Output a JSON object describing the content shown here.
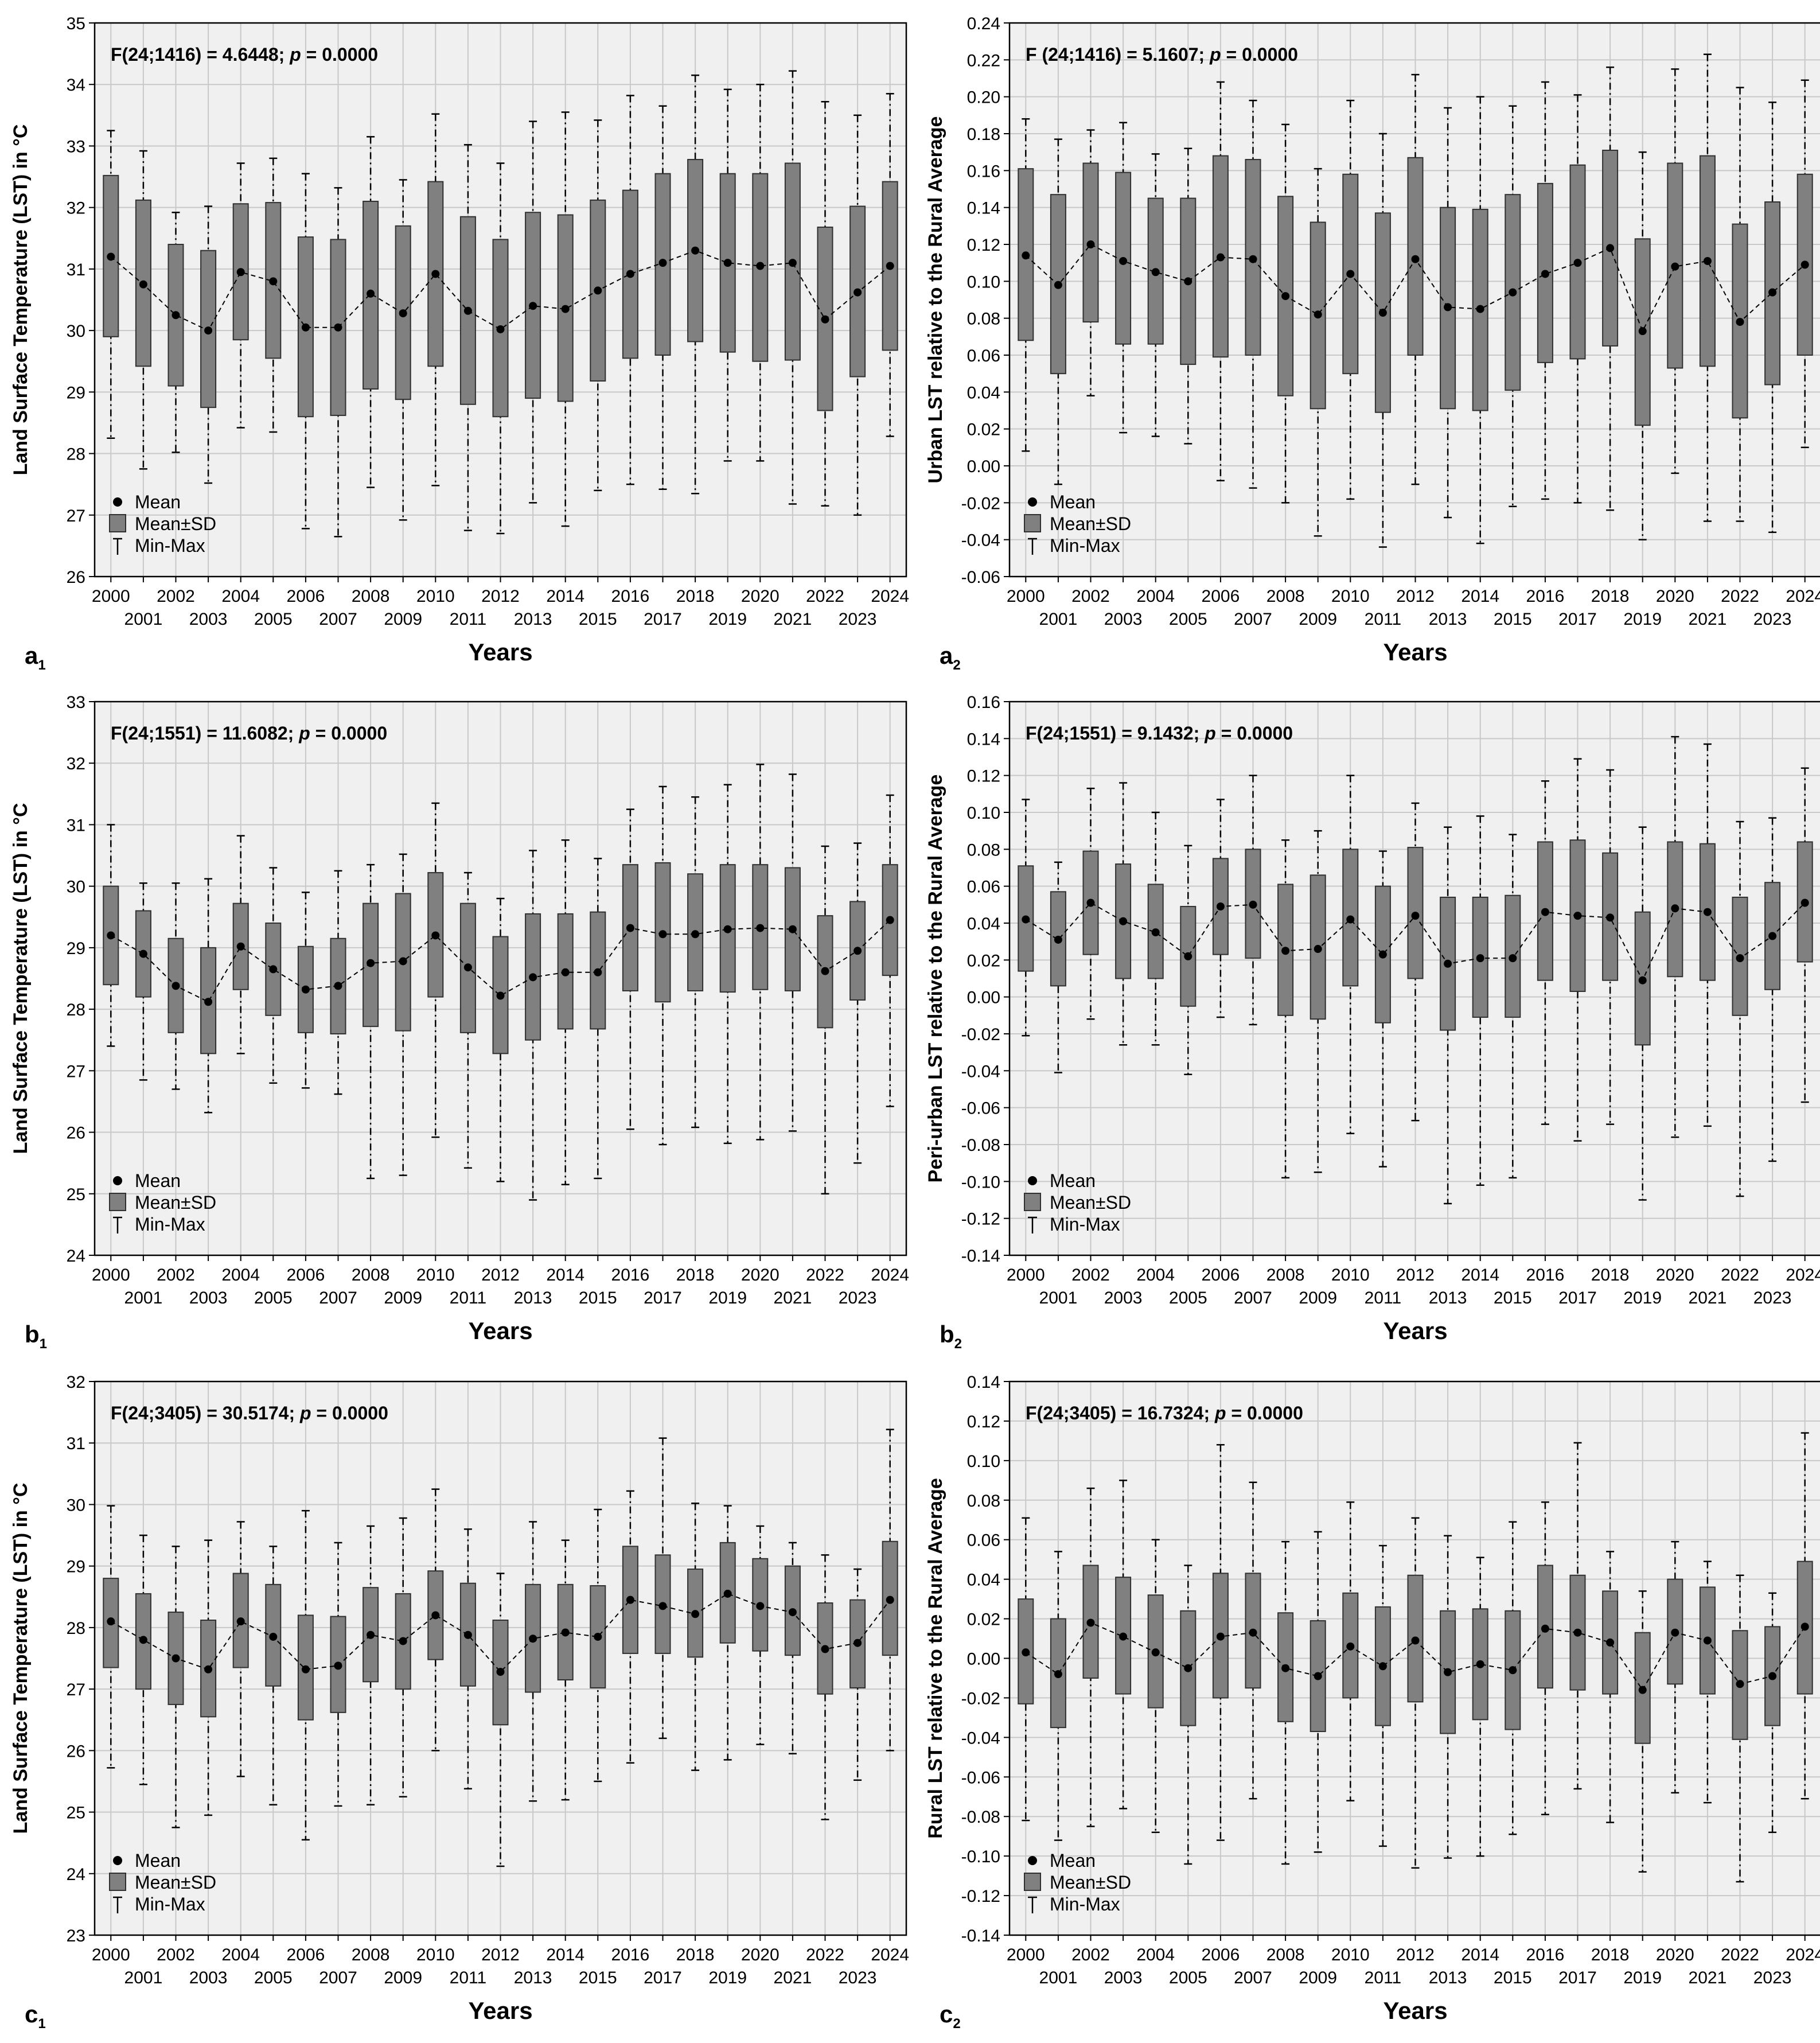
{
  "figure": {
    "legend": {
      "mean": "Mean",
      "sd": "Mean±SD",
      "range": "Min-Max"
    },
    "x_axis_label": "Years",
    "style": {
      "plot_bg": "#f0f0f0",
      "box_fill": "#808080",
      "box_edge": "#303030",
      "grid": "#c8c8c8",
      "text": "#000000"
    }
  },
  "chart_data": [
    {
      "id": "a1",
      "panel_label": "a",
      "panel_sub": "1",
      "type": "box",
      "annotation": {
        "stat": "F(24;1416) = 4.6448;",
        "p_label": "p",
        "p_value": "= 0.0000"
      },
      "xlabel": "Years",
      "ylabel": "Land Surface Temperature (LST) in °C",
      "ylim": [
        26,
        35
      ],
      "yticks": [
        "26",
        "27",
        "28",
        "29",
        "30",
        "31",
        "32",
        "33",
        "34",
        "35"
      ],
      "categories": [
        "2000",
        "2001",
        "2002",
        "2003",
        "2004",
        "2005",
        "2006",
        "2007",
        "2008",
        "2009",
        "2010",
        "2011",
        "2012",
        "2013",
        "2014",
        "2015",
        "2016",
        "2017",
        "2018",
        "2019",
        "2020",
        "2021",
        "2022",
        "2023",
        "2024"
      ],
      "mean": [
        31.2,
        30.75,
        30.25,
        30.0,
        30.95,
        30.8,
        30.05,
        30.05,
        30.6,
        30.28,
        30.92,
        30.32,
        30.02,
        30.4,
        30.35,
        30.65,
        30.92,
        31.1,
        31.3,
        31.1,
        31.05,
        31.1,
        30.18,
        30.62,
        31.05
      ],
      "sd_low": [
        29.9,
        29.42,
        29.1,
        28.75,
        29.85,
        29.55,
        28.6,
        28.62,
        29.05,
        28.88,
        29.42,
        28.8,
        28.6,
        28.9,
        28.85,
        29.18,
        29.55,
        29.6,
        29.82,
        29.65,
        29.5,
        29.52,
        28.7,
        29.25,
        29.68
      ],
      "sd_high": [
        32.52,
        32.12,
        31.4,
        31.3,
        32.06,
        32.08,
        31.52,
        31.48,
        32.1,
        31.7,
        32.42,
        31.85,
        31.48,
        31.92,
        31.88,
        32.12,
        32.28,
        32.55,
        32.78,
        32.55,
        32.55,
        32.72,
        31.68,
        32.02,
        32.42
      ],
      "min": [
        28.25,
        27.75,
        28.02,
        27.52,
        28.42,
        28.35,
        26.78,
        26.65,
        27.45,
        26.92,
        27.48,
        26.75,
        26.7,
        27.2,
        26.82,
        27.4,
        27.5,
        27.42,
        27.35,
        27.88,
        27.88,
        27.18,
        27.15,
        27.0,
        28.28
      ],
      "max": [
        33.25,
        32.92,
        31.92,
        32.02,
        32.72,
        32.8,
        32.55,
        32.32,
        33.15,
        32.45,
        33.52,
        33.02,
        32.72,
        33.4,
        33.55,
        33.42,
        33.82,
        33.65,
        34.15,
        33.92,
        34.0,
        34.22,
        33.72,
        33.5,
        33.85
      ]
    },
    {
      "id": "a2",
      "panel_label": "a",
      "panel_sub": "2",
      "type": "box",
      "annotation": {
        "stat": "F (24;1416) = 5.1607;",
        "p_label": "p",
        "p_value": "= 0.0000"
      },
      "xlabel": "Years",
      "ylabel": "Urban LST relative to the Rural Average",
      "ylim": [
        -0.06,
        0.24
      ],
      "yticks": [
        "-0.06",
        "-0.04",
        "-0.02",
        "0.00",
        "0.02",
        "0.04",
        "0.06",
        "0.08",
        "0.10",
        "0.12",
        "0.14",
        "0.16",
        "0.18",
        "0.20",
        "0.22",
        "0.24"
      ],
      "categories": [
        "2000",
        "2001",
        "2002",
        "2003",
        "2004",
        "2005",
        "2006",
        "2007",
        "2008",
        "2009",
        "2010",
        "2011",
        "2012",
        "2013",
        "2014",
        "2015",
        "2016",
        "2017",
        "2018",
        "2019",
        "2020",
        "2021",
        "2022",
        "2023",
        "2024"
      ],
      "mean": [
        0.114,
        0.098,
        0.12,
        0.111,
        0.105,
        0.1,
        0.113,
        0.112,
        0.092,
        0.082,
        0.104,
        0.083,
        0.112,
        0.086,
        0.085,
        0.094,
        0.104,
        0.11,
        0.118,
        0.073,
        0.108,
        0.111,
        0.078,
        0.094,
        0.109
      ],
      "sd_low": [
        0.068,
        0.05,
        0.078,
        0.066,
        0.066,
        0.055,
        0.059,
        0.06,
        0.038,
        0.031,
        0.05,
        0.029,
        0.06,
        0.031,
        0.03,
        0.041,
        0.056,
        0.058,
        0.065,
        0.022,
        0.053,
        0.054,
        0.026,
        0.044,
        0.06
      ],
      "sd_high": [
        0.161,
        0.147,
        0.164,
        0.159,
        0.145,
        0.145,
        0.168,
        0.166,
        0.146,
        0.132,
        0.158,
        0.137,
        0.167,
        0.14,
        0.139,
        0.147,
        0.153,
        0.163,
        0.171,
        0.123,
        0.164,
        0.168,
        0.131,
        0.143,
        0.158
      ],
      "min": [
        0.008,
        -0.01,
        0.038,
        0.018,
        0.016,
        0.012,
        -0.008,
        -0.012,
        -0.02,
        -0.038,
        -0.018,
        -0.044,
        -0.01,
        -0.028,
        -0.042,
        -0.022,
        -0.018,
        -0.02,
        -0.024,
        -0.04,
        -0.004,
        -0.03,
        -0.03,
        -0.036,
        0.01
      ],
      "max": [
        0.188,
        0.177,
        0.182,
        0.186,
        0.169,
        0.172,
        0.208,
        0.198,
        0.185,
        0.161,
        0.198,
        0.18,
        0.212,
        0.194,
        0.2,
        0.195,
        0.208,
        0.201,
        0.216,
        0.17,
        0.215,
        0.223,
        0.205,
        0.197,
        0.209
      ]
    },
    {
      "id": "b1",
      "panel_label": "b",
      "panel_sub": "1",
      "type": "box",
      "annotation": {
        "stat": "F(24;1551) = 11.6082;",
        "p_label": "p",
        "p_value": "= 0.0000"
      },
      "xlabel": "Years",
      "ylabel": "Land Surface Temperature (LST) in °C",
      "ylim": [
        24,
        33
      ],
      "yticks": [
        "24",
        "25",
        "26",
        "27",
        "28",
        "29",
        "30",
        "31",
        "32",
        "33"
      ],
      "categories": [
        "2000",
        "2001",
        "2002",
        "2003",
        "2004",
        "2005",
        "2006",
        "2007",
        "2008",
        "2009",
        "2010",
        "2011",
        "2012",
        "2013",
        "2014",
        "2015",
        "2016",
        "2017",
        "2018",
        "2019",
        "2020",
        "2021",
        "2022",
        "2023",
        "2024"
      ],
      "mean": [
        29.2,
        28.9,
        28.38,
        28.12,
        29.02,
        28.65,
        28.32,
        28.38,
        28.75,
        28.78,
        29.2,
        28.68,
        28.22,
        28.52,
        28.6,
        28.6,
        29.32,
        29.22,
        29.22,
        29.3,
        29.32,
        29.3,
        28.62,
        28.95,
        29.45
      ],
      "sd_low": [
        28.4,
        28.2,
        27.62,
        27.28,
        28.32,
        27.9,
        27.62,
        27.6,
        27.72,
        27.65,
        28.2,
        27.62,
        27.28,
        27.5,
        27.68,
        27.68,
        28.3,
        28.12,
        28.3,
        28.28,
        28.32,
        28.3,
        27.7,
        28.15,
        28.55
      ],
      "sd_high": [
        30.0,
        29.6,
        29.15,
        29.0,
        29.72,
        29.4,
        29.02,
        29.15,
        29.72,
        29.88,
        30.22,
        29.72,
        29.18,
        29.55,
        29.55,
        29.58,
        30.35,
        30.38,
        30.2,
        30.35,
        30.35,
        30.3,
        29.52,
        29.75,
        30.35
      ],
      "min": [
        27.4,
        26.85,
        26.7,
        26.32,
        27.28,
        26.8,
        26.72,
        26.62,
        25.25,
        25.3,
        25.92,
        25.42,
        25.2,
        24.9,
        25.15,
        25.25,
        26.05,
        25.8,
        26.08,
        25.82,
        25.88,
        26.02,
        25.0,
        25.5,
        26.42
      ],
      "max": [
        31.0,
        30.05,
        30.05,
        30.12,
        30.82,
        30.3,
        29.9,
        30.25,
        30.35,
        30.52,
        31.35,
        30.22,
        29.8,
        30.58,
        30.75,
        30.45,
        31.25,
        31.62,
        31.45,
        31.65,
        31.98,
        31.82,
        30.65,
        30.7,
        31.48
      ]
    },
    {
      "id": "b2",
      "panel_label": "b",
      "panel_sub": "2",
      "type": "box",
      "annotation": {
        "stat": "F(24;1551) = 9.1432;",
        "p_label": "p",
        "p_value": "= 0.0000"
      },
      "xlabel": "Years",
      "ylabel": "Peri-urban LST relative to the Rural Average",
      "ylim": [
        -0.14,
        0.16
      ],
      "yticks": [
        "-0.14",
        "-0.12",
        "-0.10",
        "-0.08",
        "-0.06",
        "-0.04",
        "-0.02",
        "0.00",
        "0.02",
        "0.04",
        "0.06",
        "0.08",
        "0.10",
        "0.12",
        "0.14",
        "0.16"
      ],
      "categories": [
        "2000",
        "2001",
        "2002",
        "2003",
        "2004",
        "2005",
        "2006",
        "2007",
        "2008",
        "2009",
        "2010",
        "2011",
        "2012",
        "2013",
        "2014",
        "2015",
        "2016",
        "2017",
        "2018",
        "2019",
        "2020",
        "2021",
        "2022",
        "2023",
        "2024"
      ],
      "mean": [
        0.042,
        0.031,
        0.051,
        0.041,
        0.035,
        0.022,
        0.049,
        0.05,
        0.025,
        0.026,
        0.042,
        0.023,
        0.044,
        0.018,
        0.021,
        0.021,
        0.046,
        0.044,
        0.043,
        0.009,
        0.048,
        0.046,
        0.021,
        0.033,
        0.051
      ],
      "sd_low": [
        0.014,
        0.006,
        0.023,
        0.01,
        0.01,
        -0.005,
        0.023,
        0.021,
        -0.01,
        -0.012,
        0.006,
        -0.014,
        0.01,
        -0.018,
        -0.011,
        -0.011,
        0.009,
        0.003,
        0.009,
        -0.026,
        0.011,
        0.009,
        -0.01,
        0.004,
        0.019
      ],
      "sd_high": [
        0.071,
        0.057,
        0.079,
        0.072,
        0.061,
        0.049,
        0.075,
        0.08,
        0.061,
        0.066,
        0.08,
        0.06,
        0.081,
        0.054,
        0.054,
        0.055,
        0.084,
        0.085,
        0.078,
        0.046,
        0.084,
        0.083,
        0.054,
        0.062,
        0.084
      ],
      "min": [
        -0.021,
        -0.041,
        -0.012,
        -0.026,
        -0.026,
        -0.042,
        -0.011,
        -0.015,
        -0.098,
        -0.095,
        -0.074,
        -0.092,
        -0.067,
        -0.112,
        -0.102,
        -0.098,
        -0.069,
        -0.078,
        -0.069,
        -0.11,
        -0.076,
        -0.07,
        -0.108,
        -0.089,
        -0.057
      ],
      "max": [
        0.107,
        0.073,
        0.113,
        0.116,
        0.1,
        0.082,
        0.107,
        0.12,
        0.085,
        0.09,
        0.12,
        0.079,
        0.105,
        0.092,
        0.098,
        0.088,
        0.117,
        0.129,
        0.123,
        0.092,
        0.141,
        0.137,
        0.095,
        0.097,
        0.124
      ]
    },
    {
      "id": "c1",
      "panel_label": "c",
      "panel_sub": "1",
      "type": "box",
      "annotation": {
        "stat": "F(24;3405) = 30.5174;",
        "p_label": "p",
        "p_value": "= 0.0000"
      },
      "xlabel": "Years",
      "ylabel": "Land Surface Temperature (LST) in °C",
      "ylim": [
        23,
        32
      ],
      "yticks": [
        "23",
        "24",
        "25",
        "26",
        "27",
        "28",
        "29",
        "30",
        "31",
        "32"
      ],
      "categories": [
        "2000",
        "2001",
        "2002",
        "2003",
        "2004",
        "2005",
        "2006",
        "2007",
        "2008",
        "2009",
        "2010",
        "2011",
        "2012",
        "2013",
        "2014",
        "2015",
        "2016",
        "2017",
        "2018",
        "2019",
        "2020",
        "2021",
        "2022",
        "2023",
        "2024"
      ],
      "mean": [
        28.1,
        27.8,
        27.5,
        27.32,
        28.1,
        27.85,
        27.32,
        27.38,
        27.88,
        27.78,
        28.2,
        27.88,
        27.28,
        27.82,
        27.92,
        27.85,
        28.45,
        28.35,
        28.22,
        28.55,
        28.35,
        28.25,
        27.65,
        27.75,
        28.45
      ],
      "sd_low": [
        27.35,
        27.0,
        26.75,
        26.55,
        27.35,
        27.05,
        26.5,
        26.62,
        27.12,
        27.0,
        27.48,
        27.05,
        26.42,
        26.95,
        27.15,
        27.02,
        27.58,
        27.58,
        27.52,
        27.75,
        27.62,
        27.55,
        26.92,
        27.02,
        27.55
      ],
      "sd_high": [
        28.8,
        28.55,
        28.25,
        28.12,
        28.88,
        28.7,
        28.2,
        28.18,
        28.65,
        28.55,
        28.92,
        28.72,
        28.12,
        28.7,
        28.7,
        28.68,
        29.32,
        29.18,
        28.95,
        29.38,
        29.12,
        29.0,
        28.4,
        28.45,
        29.4
      ],
      "min": [
        25.72,
        25.45,
        24.75,
        24.95,
        25.58,
        25.12,
        24.55,
        25.1,
        25.12,
        25.25,
        26.0,
        25.38,
        24.12,
        25.18,
        25.2,
        25.5,
        25.8,
        26.2,
        25.68,
        25.85,
        26.1,
        25.95,
        24.88,
        25.52,
        26.0
      ],
      "max": [
        29.98,
        29.5,
        29.32,
        29.42,
        29.72,
        29.32,
        29.9,
        29.38,
        29.65,
        29.78,
        30.25,
        29.6,
        28.88,
        29.72,
        29.42,
        29.92,
        30.22,
        31.08,
        30.02,
        29.98,
        29.65,
        29.38,
        29.18,
        28.95,
        31.22
      ]
    },
    {
      "id": "c2",
      "panel_label": "c",
      "panel_sub": "2",
      "type": "box",
      "annotation": {
        "stat": "F(24;3405) = 16.7324;",
        "p_label": "p",
        "p_value": "= 0.0000"
      },
      "xlabel": "Years",
      "ylabel": "Rural LST relative to the Rural Average",
      "ylim": [
        -0.14,
        0.14
      ],
      "yticks": [
        "-0.14",
        "-0.12",
        "-0.10",
        "-0.08",
        "-0.06",
        "-0.04",
        "-0.02",
        "0.00",
        "0.02",
        "0.04",
        "0.06",
        "0.08",
        "0.10",
        "0.12",
        "0.14"
      ],
      "categories": [
        "2000",
        "2001",
        "2002",
        "2003",
        "2004",
        "2005",
        "2006",
        "2007",
        "2008",
        "2009",
        "2010",
        "2011",
        "2012",
        "2013",
        "2014",
        "2015",
        "2016",
        "2017",
        "2018",
        "2019",
        "2020",
        "2021",
        "2022",
        "2023",
        "2024"
      ],
      "mean": [
        0.003,
        -0.008,
        0.018,
        0.011,
        0.003,
        -0.005,
        0.011,
        0.013,
        -0.005,
        -0.009,
        0.006,
        -0.004,
        0.009,
        -0.007,
        -0.003,
        -0.006,
        0.015,
        0.013,
        0.008,
        -0.016,
        0.013,
        0.009,
        -0.013,
        -0.009,
        0.016
      ],
      "sd_low": [
        -0.023,
        -0.035,
        -0.01,
        -0.018,
        -0.025,
        -0.034,
        -0.02,
        -0.015,
        -0.032,
        -0.037,
        -0.02,
        -0.034,
        -0.022,
        -0.038,
        -0.031,
        -0.036,
        -0.015,
        -0.016,
        -0.018,
        -0.043,
        -0.013,
        -0.018,
        -0.041,
        -0.034,
        -0.018
      ],
      "sd_high": [
        0.03,
        0.02,
        0.047,
        0.041,
        0.032,
        0.024,
        0.043,
        0.043,
        0.023,
        0.019,
        0.033,
        0.026,
        0.042,
        0.024,
        0.025,
        0.024,
        0.047,
        0.042,
        0.034,
        0.013,
        0.04,
        0.036,
        0.014,
        0.016,
        0.049
      ],
      "min": [
        -0.082,
        -0.092,
        -0.085,
        -0.076,
        -0.088,
        -0.104,
        -0.092,
        -0.071,
        -0.104,
        -0.098,
        -0.072,
        -0.095,
        -0.106,
        -0.101,
        -0.1,
        -0.089,
        -0.079,
        -0.066,
        -0.083,
        -0.108,
        -0.068,
        -0.073,
        -0.113,
        -0.088,
        -0.071
      ],
      "max": [
        0.071,
        0.054,
        0.086,
        0.09,
        0.06,
        0.047,
        0.108,
        0.089,
        0.059,
        0.064,
        0.079,
        0.057,
        0.071,
        0.062,
        0.051,
        0.069,
        0.079,
        0.109,
        0.054,
        0.034,
        0.059,
        0.049,
        0.042,
        0.033,
        0.114
      ]
    }
  ]
}
